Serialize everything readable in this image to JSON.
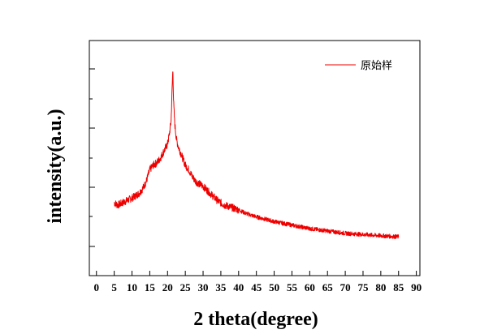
{
  "chart_data": {
    "type": "line",
    "title": "",
    "xlabel": "2 theta(degree)",
    "ylabel": "intensity(a.u.)",
    "xlim": [
      -2,
      91
    ],
    "x_ticks": [
      0,
      5,
      10,
      15,
      20,
      25,
      30,
      35,
      40,
      45,
      50,
      55,
      60,
      65,
      70,
      75,
      80,
      85,
      90
    ],
    "x_tick_labels": [
      "0",
      "5",
      "10",
      "15",
      "20",
      "25",
      "30",
      "35",
      "40",
      "45",
      "50",
      "55",
      "60",
      "65",
      "70",
      "75",
      "80",
      "85",
      "90"
    ],
    "ylim": [
      0,
      100
    ],
    "y_tick_labels_shown": false,
    "grid": false,
    "legend_position": "top-right",
    "series": [
      {
        "name": "原始样",
        "color": "#ee0000",
        "x": [
          5,
          6,
          8,
          10,
          12,
          13,
          14,
          15,
          16,
          17,
          18,
          19,
          20,
          20.5,
          21,
          21.3,
          21.5,
          21.7,
          22,
          22.5,
          23,
          24,
          25,
          26,
          27,
          28,
          30,
          32,
          34,
          36,
          38,
          40,
          42,
          45,
          50,
          55,
          60,
          65,
          70,
          75,
          80,
          85
        ],
        "y": [
          31,
          30,
          31.5,
          33,
          35,
          37,
          40,
          45,
          47,
          48,
          50,
          53,
          56,
          60,
          66,
          80,
          88,
          74,
          65,
          58,
          55,
          51,
          47,
          45,
          42,
          40,
          38,
          35,
          32,
          30,
          29,
          28,
          26.5,
          25,
          23,
          21.5,
          20,
          19,
          18,
          17.5,
          17,
          16.5
        ]
      }
    ]
  }
}
